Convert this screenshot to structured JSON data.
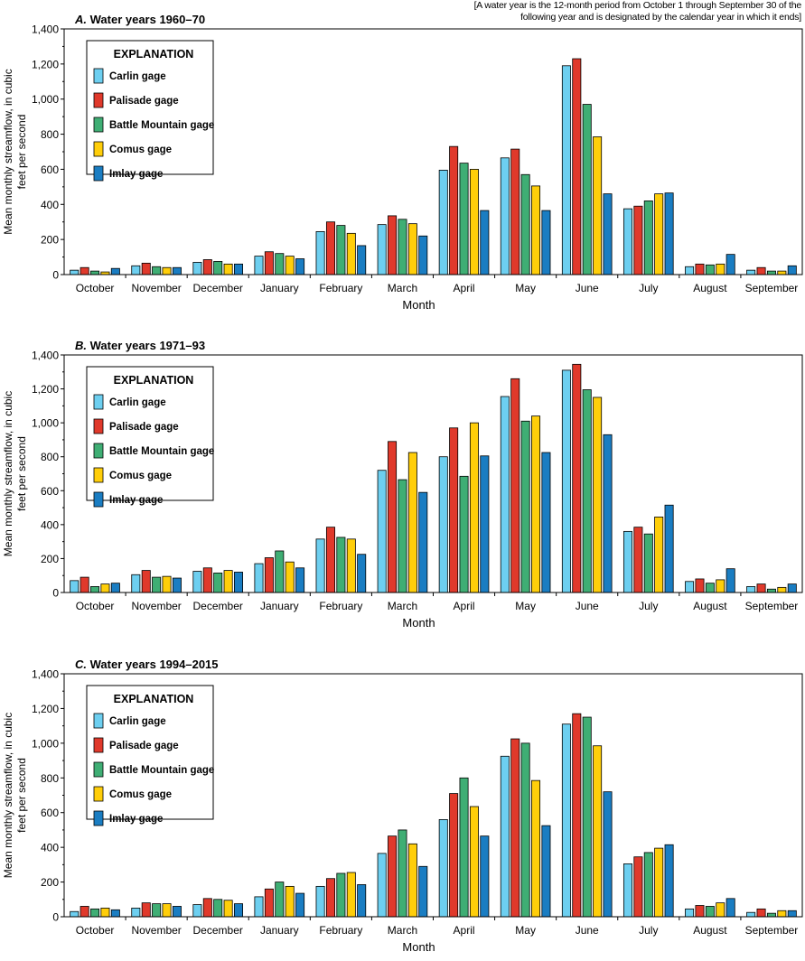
{
  "note": "[A water year is the 12-month period from October 1 through September 30 of the following year and is designated by the calendar year in which it ends]",
  "colors": {
    "Carlin gage": "#6dcff0",
    "Palisade gage": "#e0392b",
    "Battle Mountain gage": "#3fae74",
    "Comus gage": "#ffce0a",
    "Imlay gage": "#1a7dc2"
  },
  "chart_data": [
    {
      "type": "bar",
      "panel": "A.",
      "title": "Water years 1960–70",
      "xlabel": "Month",
      "ylabel": "Mean monthly streamflow, in cubic feet per second",
      "ylim": [
        0,
        1400
      ],
      "yticks": [
        "0",
        "200",
        "400",
        "600",
        "800",
        "1,000",
        "1,200",
        "1,400"
      ],
      "legend_title": "EXPLANATION",
      "legend_position": "top-left",
      "categories": [
        "October",
        "November",
        "December",
        "January",
        "February",
        "March",
        "April",
        "May",
        "June",
        "July",
        "August",
        "September"
      ],
      "series": [
        {
          "name": "Carlin gage",
          "values": [
            25,
            50,
            70,
            105,
            245,
            285,
            595,
            665,
            1190,
            375,
            45,
            25
          ]
        },
        {
          "name": "Palisade gage",
          "values": [
            40,
            65,
            85,
            130,
            300,
            335,
            730,
            715,
            1230,
            390,
            60,
            40
          ]
        },
        {
          "name": "Battle Mountain gage",
          "values": [
            20,
            45,
            75,
            120,
            280,
            315,
            635,
            570,
            970,
            420,
            55,
            20
          ]
        },
        {
          "name": "Comus gage",
          "values": [
            15,
            40,
            60,
            105,
            235,
            290,
            600,
            505,
            785,
            460,
            60,
            20
          ]
        },
        {
          "name": "Imlay gage",
          "values": [
            35,
            40,
            60,
            90,
            165,
            220,
            365,
            365,
            460,
            465,
            115,
            50
          ]
        }
      ]
    },
    {
      "type": "bar",
      "panel": "B.",
      "title": "Water years 1971–93",
      "xlabel": "Month",
      "ylabel": "Mean monthly streamflow, in cubic feet per second",
      "ylim": [
        0,
        1400
      ],
      "yticks": [
        "0",
        "200",
        "400",
        "600",
        "800",
        "1,000",
        "1,200",
        "1,400"
      ],
      "legend_title": "EXPLANATION",
      "legend_position": "top-left",
      "categories": [
        "October",
        "November",
        "December",
        "January",
        "February",
        "March",
        "April",
        "May",
        "June",
        "July",
        "August",
        "September"
      ],
      "series": [
        {
          "name": "Carlin gage",
          "values": [
            70,
            105,
            125,
            170,
            315,
            720,
            800,
            1155,
            1310,
            360,
            65,
            35
          ]
        },
        {
          "name": "Palisade gage",
          "values": [
            90,
            130,
            145,
            205,
            385,
            890,
            970,
            1260,
            1345,
            385,
            80,
            50
          ]
        },
        {
          "name": "Battle Mountain gage",
          "values": [
            35,
            90,
            115,
            245,
            325,
            665,
            685,
            1010,
            1195,
            345,
            55,
            20
          ]
        },
        {
          "name": "Comus gage",
          "values": [
            50,
            95,
            130,
            180,
            315,
            825,
            1000,
            1040,
            1150,
            445,
            75,
            30
          ]
        },
        {
          "name": "Imlay gage",
          "values": [
            55,
            85,
            120,
            145,
            225,
            590,
            805,
            825,
            930,
            515,
            140,
            50
          ]
        }
      ]
    },
    {
      "type": "bar",
      "panel": "C.",
      "title": "Water years 1994–2015",
      "xlabel": "Month",
      "ylabel": "Mean monthly streamflow, in cubic feet per second",
      "ylim": [
        0,
        1400
      ],
      "yticks": [
        "0",
        "200",
        "400",
        "600",
        "800",
        "1,000",
        "1,200",
        "1,400"
      ],
      "legend_title": "EXPLANATION",
      "legend_position": "top-left",
      "categories": [
        "October",
        "November",
        "December",
        "January",
        "February",
        "March",
        "April",
        "May",
        "June",
        "July",
        "August",
        "September"
      ],
      "series": [
        {
          "name": "Carlin gage",
          "values": [
            30,
            50,
            70,
            115,
            175,
            365,
            560,
            925,
            1110,
            305,
            45,
            25
          ]
        },
        {
          "name": "Palisade gage",
          "values": [
            60,
            80,
            105,
            160,
            220,
            465,
            710,
            1025,
            1170,
            345,
            65,
            45
          ]
        },
        {
          "name": "Battle Mountain gage",
          "values": [
            45,
            75,
            100,
            200,
            250,
            500,
            800,
            1000,
            1150,
            370,
            60,
            20
          ]
        },
        {
          "name": "Comus gage",
          "values": [
            50,
            75,
            95,
            175,
            255,
            420,
            635,
            785,
            985,
            395,
            80,
            35
          ]
        },
        {
          "name": "Imlay gage",
          "values": [
            40,
            60,
            75,
            135,
            185,
            290,
            465,
            525,
            720,
            415,
            105,
            35
          ]
        }
      ]
    }
  ]
}
